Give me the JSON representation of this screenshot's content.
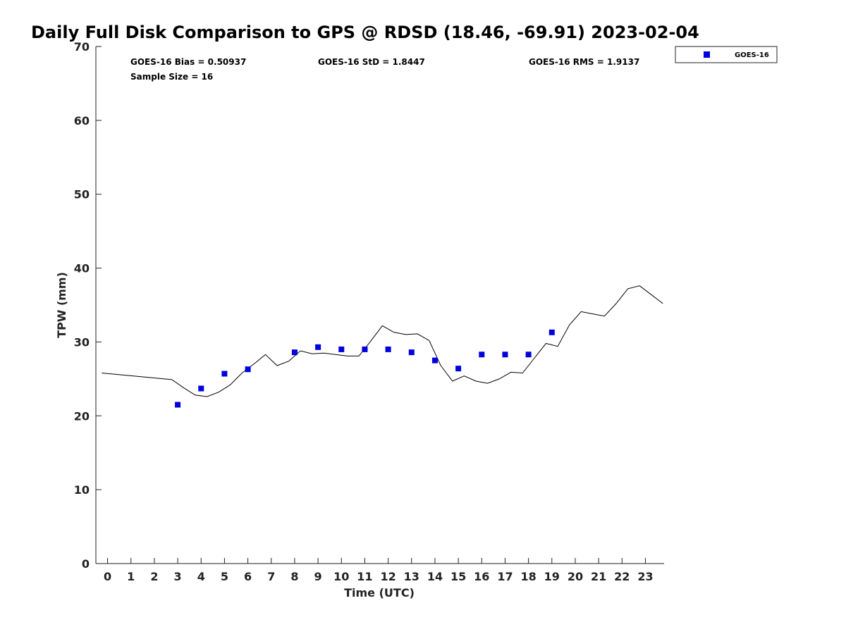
{
  "chart_data": {
    "type": "scatter",
    "title": "Daily Full Disk Comparison to GPS @ RDSD (18.46, -69.91) 2023-02-04",
    "xlabel": "Time (UTC)",
    "ylabel": "TPW (mm)",
    "xlim": [
      -0.5,
      23.8
    ],
    "ylim": [
      0,
      70
    ],
    "x_ticks": [
      0,
      1,
      2,
      3,
      4,
      5,
      6,
      7,
      8,
      9,
      10,
      11,
      12,
      13,
      14,
      15,
      16,
      17,
      18,
      19,
      20,
      21,
      22,
      23
    ],
    "y_ticks": [
      0,
      10,
      20,
      30,
      40,
      50,
      60,
      70
    ],
    "grid": false,
    "legend_position": "top-right",
    "stats": {
      "bias": "GOES-16 Bias = 0.50937",
      "std": "GOES-16 StD = 1.8447",
      "rms": "GOES-16 RMS = 1.9137",
      "sample_size": "Sample Size = 16"
    },
    "series": [
      {
        "name": "GOES-16",
        "style": "square-markers",
        "color": "#0000dd",
        "x": [
          3,
          4,
          5,
          6,
          8,
          9,
          10,
          11,
          12,
          13,
          14,
          15,
          16,
          17,
          18,
          19
        ],
        "y": [
          21.5,
          23.7,
          25.7,
          26.3,
          28.6,
          29.3,
          29.0,
          29.0,
          29.0,
          28.6,
          27.5,
          26.4,
          28.3,
          28.3,
          28.3,
          31.3
        ]
      },
      {
        "style": "line",
        "color": "#000000",
        "x": [
          -0.25,
          2.75,
          3.25,
          3.75,
          4.25,
          4.75,
          5.25,
          5.75,
          6.25,
          6.75,
          7.25,
          7.75,
          8.25,
          8.75,
          9.25,
          9.75,
          10.25,
          10.75,
          11.25,
          11.75,
          12.25,
          12.75,
          13.25,
          13.75,
          14.25,
          14.75,
          15.25,
          15.75,
          16.25,
          16.75,
          17.25,
          17.75,
          18.25,
          18.75,
          19.25,
          19.75,
          20.25,
          20.75,
          21.25,
          21.75,
          22.25,
          22.75,
          23.25,
          23.75
        ],
        "y": [
          25.8,
          24.9,
          23.8,
          22.8,
          22.6,
          23.2,
          24.2,
          25.8,
          27.0,
          28.3,
          26.8,
          27.4,
          28.8,
          28.4,
          28.5,
          28.3,
          28.1,
          28.1,
          30.1,
          32.2,
          31.3,
          31.0,
          31.1,
          30.2,
          26.8,
          24.7,
          25.4,
          24.7,
          24.4,
          25.0,
          25.9,
          25.8,
          27.8,
          29.8,
          29.4,
          32.3,
          34.1,
          33.8,
          33.5,
          35.2,
          37.2,
          37.6,
          36.4,
          35.2
        ]
      }
    ]
  }
}
